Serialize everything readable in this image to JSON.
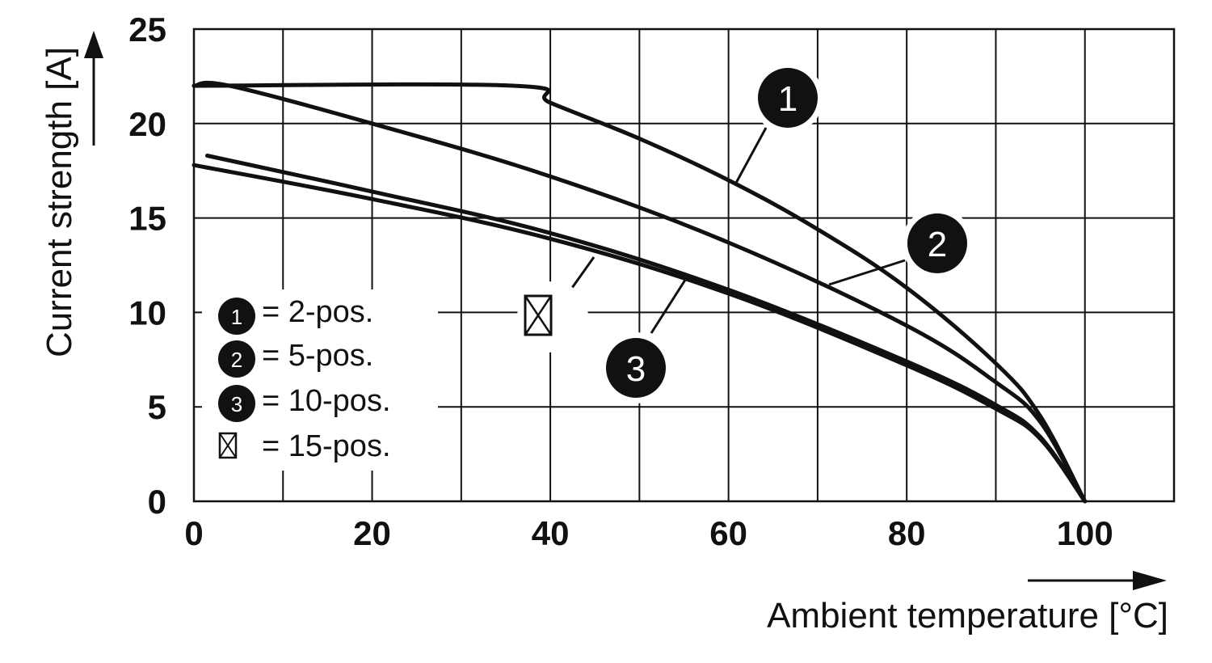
{
  "chart_data": {
    "type": "line",
    "xlabel": "Ambient temperature [°C]",
    "ylabel": "Current strength [A]",
    "xlim": [
      0,
      110
    ],
    "ylim": [
      0,
      25
    ],
    "x_ticks": [
      0,
      20,
      40,
      60,
      80,
      100
    ],
    "x_tick_labels": [
      "0",
      "20",
      "40",
      "60",
      "80",
      "100"
    ],
    "y_ticks": [
      0,
      5,
      10,
      15,
      20,
      25
    ],
    "y_tick_labels": [
      "0",
      "5",
      "10",
      "15",
      "20",
      "25"
    ],
    "grid": true,
    "legend_position": "left",
    "legend": [
      {
        "marker": "1",
        "label": "= 2-pos."
      },
      {
        "marker": "2",
        "label": "= 5-pos."
      },
      {
        "marker": "3",
        "label": "= 10-pos."
      },
      {
        "marker": "crossed-box",
        "label": "= 15-pos."
      }
    ],
    "series": [
      {
        "marker": "1",
        "x": [
          0,
          36,
          40,
          50,
          60,
          70,
          80,
          90,
          95,
          100
        ],
        "y": [
          22,
          22,
          21.1,
          19.2,
          17.0,
          14.4,
          11.3,
          7.3,
          4.5,
          0
        ]
      },
      {
        "marker": "2",
        "x": [
          0,
          4,
          20,
          40,
          60,
          80,
          90,
          95,
          100
        ],
        "y": [
          22,
          22,
          20.0,
          17.2,
          13.7,
          9.3,
          6.3,
          4.2,
          0
        ]
      },
      {
        "marker": "3",
        "x": [
          1.5,
          20,
          40,
          60,
          80,
          90,
          95,
          100
        ],
        "y": [
          18.3,
          16.4,
          14.2,
          11.2,
          7.4,
          5.1,
          3.4,
          0
        ]
      },
      {
        "marker": "crossed-box",
        "x": [
          0,
          20,
          40,
          60,
          80,
          90,
          95,
          100
        ],
        "y": [
          17.8,
          16.0,
          13.9,
          11.0,
          7.2,
          4.9,
          3.3,
          0
        ]
      }
    ]
  },
  "icons": {
    "badge_fill": "#111111",
    "line_color": "#111111",
    "grid_color": "#111111"
  }
}
